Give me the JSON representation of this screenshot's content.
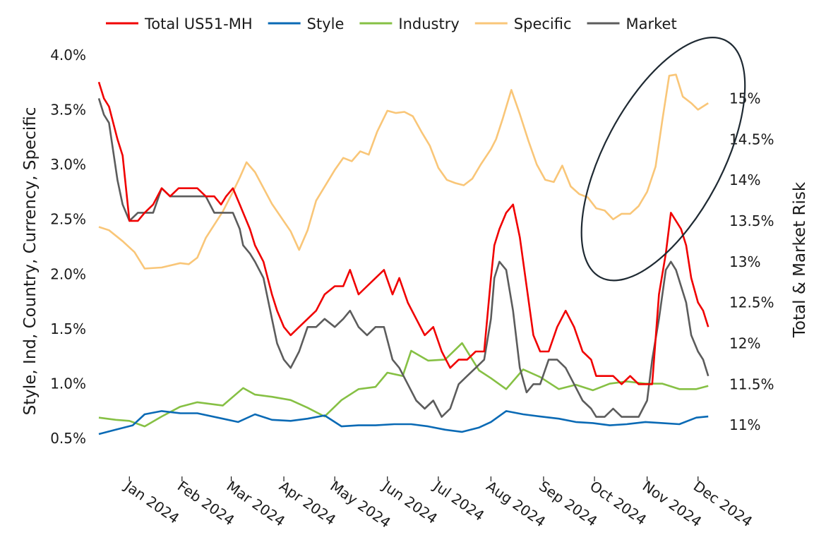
{
  "chart_data": {
    "type": "line",
    "legend": {
      "placement": "top",
      "entries": [
        {
          "label": "Total US51-MH",
          "color": "#f00000"
        },
        {
          "label": "Style",
          "color": "#0a6ab5"
        },
        {
          "label": "Industry",
          "color": "#86c044"
        },
        {
          "label": "Specific",
          "color": "#f9c678"
        },
        {
          "label": "Market",
          "color": "#5c5c5c"
        }
      ]
    },
    "ylabel": "Style, Ind, Country, Currency, Specific",
    "y2label": "Total & Market Risk",
    "ylim": [
      0.0025,
      0.0405
    ],
    "y2lim": [
      10.5,
      15.6
    ],
    "yticks": [
      "0.5%",
      "1.0%",
      "1.5%",
      "2.0%",
      "2.5%",
      "3.0%",
      "3.5%",
      "4.0%"
    ],
    "y2ticks": [
      "11%",
      "11.5%",
      "12%",
      "12.5%",
      "13%",
      "13.5%",
      "14%",
      "14.5%",
      "15%"
    ],
    "xlim": [
      "2023-12-14",
      "2024-12-14"
    ],
    "xticks": [
      {
        "date": "2024-01-01",
        "label": "Jan 2024"
      },
      {
        "date": "2024-02-01",
        "label": "Feb 2024"
      },
      {
        "date": "2024-03-01",
        "label": "Mar 2024"
      },
      {
        "date": "2024-04-01",
        "label": "Apr 2024"
      },
      {
        "date": "2024-05-01",
        "label": "May 2024"
      },
      {
        "date": "2024-06-01",
        "label": "Jun 2024"
      },
      {
        "date": "2024-07-01",
        "label": "Jul 2024"
      },
      {
        "date": "2024-08-01",
        "label": "Aug 2024"
      },
      {
        "date": "2024-09-01",
        "label": "Sep 2024"
      },
      {
        "date": "2024-10-01",
        "label": "Oct 2024"
      },
      {
        "date": "2024-11-01",
        "label": "Nov 2024"
      },
      {
        "date": "2024-12-01",
        "label": "Dec 2024"
      }
    ],
    "grid": false,
    "annotation": {
      "shape": "ellipse",
      "around_dates": [
        "2024-10-15",
        "2024-12-07"
      ],
      "value_range_left_axis": [
        0.0215,
        0.0395
      ]
    },
    "series": [
      {
        "name": "Total US51-MH",
        "axis": "right",
        "color": "#f00000",
        "x": [
          "2023-12-14",
          "2023-12-17",
          "2023-12-20",
          "2023-12-25",
          "2023-12-28",
          "2024-01-01",
          "2024-01-06",
          "2024-01-10",
          "2024-01-15",
          "2024-01-20",
          "2024-01-25",
          "2024-01-30",
          "2024-02-05",
          "2024-02-10",
          "2024-02-15",
          "2024-02-20",
          "2024-02-24",
          "2024-02-27",
          "2024-03-02",
          "2024-03-06",
          "2024-03-08",
          "2024-03-12",
          "2024-03-15",
          "2024-03-20",
          "2024-03-25",
          "2024-03-28",
          "2024-04-01",
          "2024-04-05",
          "2024-04-10",
          "2024-04-15",
          "2024-04-20",
          "2024-04-25",
          "2024-05-01",
          "2024-05-06",
          "2024-05-10",
          "2024-05-15",
          "2024-05-20",
          "2024-05-25",
          "2024-05-30",
          "2024-06-04",
          "2024-06-08",
          "2024-06-13",
          "2024-06-18",
          "2024-06-23",
          "2024-06-28",
          "2024-07-03",
          "2024-07-08",
          "2024-07-13",
          "2024-07-18",
          "2024-07-23",
          "2024-07-28",
          "2024-08-01",
          "2024-08-03",
          "2024-08-06",
          "2024-08-10",
          "2024-08-14",
          "2024-08-18",
          "2024-08-22",
          "2024-08-26",
          "2024-08-30",
          "2024-09-04",
          "2024-09-09",
          "2024-09-14",
          "2024-09-19",
          "2024-09-24",
          "2024-09-29",
          "2024-10-02",
          "2024-10-07",
          "2024-10-12",
          "2024-10-17",
          "2024-10-22",
          "2024-10-27",
          "2024-11-01",
          "2024-11-04",
          "2024-11-08",
          "2024-11-12",
          "2024-11-15",
          "2024-11-18",
          "2024-11-21",
          "2024-11-24",
          "2024-11-27",
          "2024-12-01",
          "2024-12-04",
          "2024-12-07"
        ],
        "values": [
          15.2,
          15.0,
          14.9,
          14.5,
          14.3,
          13.5,
          13.5,
          13.6,
          13.7,
          13.9,
          13.8,
          13.9,
          13.9,
          13.9,
          13.8,
          13.8,
          13.7,
          13.8,
          13.9,
          13.7,
          13.6,
          13.4,
          13.2,
          13.0,
          12.6,
          12.4,
          12.2,
          12.1,
          12.2,
          12.3,
          12.4,
          12.6,
          12.7,
          12.7,
          12.9,
          12.6,
          12.7,
          12.8,
          12.9,
          12.6,
          12.8,
          12.5,
          12.3,
          12.1,
          12.2,
          11.9,
          11.7,
          11.8,
          11.8,
          11.9,
          11.9,
          12.8,
          13.2,
          13.4,
          13.6,
          13.7,
          13.3,
          12.7,
          12.1,
          11.9,
          11.9,
          12.2,
          12.4,
          12.2,
          11.9,
          11.8,
          11.6,
          11.6,
          11.6,
          11.5,
          11.6,
          11.5,
          11.5,
          11.5,
          12.6,
          13.1,
          13.6,
          13.5,
          13.4,
          13.2,
          12.8,
          12.5,
          12.4,
          12.2
        ]
      },
      {
        "name": "Style",
        "axis": "left",
        "color": "#0a6ab5",
        "x": [
          "2023-12-14",
          "2023-12-24",
          "2024-01-03",
          "2024-01-10",
          "2024-01-20",
          "2024-01-31",
          "2024-02-10",
          "2024-02-25",
          "2024-03-05",
          "2024-03-15",
          "2024-03-25",
          "2024-04-05",
          "2024-04-15",
          "2024-04-25",
          "2024-05-05",
          "2024-05-15",
          "2024-05-25",
          "2024-06-05",
          "2024-06-15",
          "2024-06-25",
          "2024-07-05",
          "2024-07-15",
          "2024-07-25",
          "2024-08-01",
          "2024-08-10",
          "2024-08-20",
          "2024-08-30",
          "2024-09-10",
          "2024-09-20",
          "2024-09-30",
          "2024-10-10",
          "2024-10-20",
          "2024-10-31",
          "2024-11-10",
          "2024-11-20",
          "2024-11-30",
          "2024-12-07"
        ],
        "values": [
          0.0054,
          0.0058,
          0.0062,
          0.0072,
          0.0075,
          0.0073,
          0.0073,
          0.0068,
          0.0065,
          0.0072,
          0.0067,
          0.0066,
          0.0068,
          0.0071,
          0.0061,
          0.0062,
          0.0062,
          0.0063,
          0.0063,
          0.0061,
          0.0058,
          0.0056,
          0.006,
          0.0065,
          0.0075,
          0.0072,
          0.007,
          0.0068,
          0.0065,
          0.0064,
          0.0062,
          0.0063,
          0.0065,
          0.0064,
          0.0063,
          0.0069,
          0.007
        ]
      },
      {
        "name": "Industry",
        "axis": "left",
        "color": "#86c044",
        "x": [
          "2023-12-14",
          "2023-12-24",
          "2024-01-01",
          "2024-01-10",
          "2024-01-20",
          "2024-01-31",
          "2024-02-10",
          "2024-02-25",
          "2024-03-08",
          "2024-03-15",
          "2024-03-25",
          "2024-04-05",
          "2024-04-15",
          "2024-04-25",
          "2024-05-05",
          "2024-05-15",
          "2024-05-25",
          "2024-06-01",
          "2024-06-10",
          "2024-06-15",
          "2024-06-25",
          "2024-07-05",
          "2024-07-15",
          "2024-07-25",
          "2024-08-01",
          "2024-08-10",
          "2024-08-20",
          "2024-08-30",
          "2024-09-10",
          "2024-09-20",
          "2024-09-30",
          "2024-10-10",
          "2024-10-20",
          "2024-10-31",
          "2024-11-10",
          "2024-11-20",
          "2024-11-30",
          "2024-12-07"
        ],
        "values": [
          0.0069,
          0.0067,
          0.0066,
          0.0061,
          0.007,
          0.0079,
          0.0083,
          0.008,
          0.0096,
          0.009,
          0.0088,
          0.0085,
          0.0078,
          0.007,
          0.0085,
          0.0095,
          0.0097,
          0.011,
          0.0107,
          0.013,
          0.0121,
          0.0122,
          0.0137,
          0.0112,
          0.0105,
          0.0095,
          0.0113,
          0.0106,
          0.0095,
          0.0099,
          0.0094,
          0.01,
          0.0102,
          0.01,
          0.01,
          0.0095,
          0.0095,
          0.0098
        ]
      },
      {
        "name": "Specific",
        "axis": "left",
        "color": "#f9c678",
        "x": [
          "2023-12-14",
          "2023-12-20",
          "2023-12-28",
          "2024-01-04",
          "2024-01-10",
          "2024-01-20",
          "2024-01-31",
          "2024-02-05",
          "2024-02-10",
          "2024-02-15",
          "2024-02-25",
          "2024-03-02",
          "2024-03-06",
          "2024-03-10",
          "2024-03-15",
          "2024-03-25",
          "2024-04-05",
          "2024-04-10",
          "2024-04-15",
          "2024-04-20",
          "2024-05-01",
          "2024-05-06",
          "2024-05-11",
          "2024-05-16",
          "2024-05-21",
          "2024-05-26",
          "2024-06-01",
          "2024-06-06",
          "2024-06-11",
          "2024-06-16",
          "2024-06-21",
          "2024-06-26",
          "2024-07-01",
          "2024-07-06",
          "2024-07-11",
          "2024-07-16",
          "2024-07-21",
          "2024-07-26",
          "2024-08-01",
          "2024-08-04",
          "2024-08-08",
          "2024-08-13",
          "2024-08-18",
          "2024-08-23",
          "2024-08-28",
          "2024-09-02",
          "2024-09-07",
          "2024-09-12",
          "2024-09-17",
          "2024-09-22",
          "2024-09-27",
          "2024-10-02",
          "2024-10-07",
          "2024-10-12",
          "2024-10-17",
          "2024-10-22",
          "2024-10-27",
          "2024-11-01",
          "2024-11-06",
          "2024-11-10",
          "2024-11-14",
          "2024-11-18",
          "2024-11-22",
          "2024-11-27",
          "2024-12-01",
          "2024-12-07"
        ],
        "values": [
          0.0243,
          0.024,
          0.023,
          0.022,
          0.0205,
          0.0206,
          0.021,
          0.0209,
          0.0215,
          0.0233,
          0.0257,
          0.0275,
          0.0288,
          0.0302,
          0.0293,
          0.0264,
          0.0239,
          0.0222,
          0.024,
          0.0267,
          0.0295,
          0.0306,
          0.0303,
          0.0312,
          0.0309,
          0.033,
          0.0349,
          0.0347,
          0.0348,
          0.0344,
          0.033,
          0.0317,
          0.0297,
          0.0286,
          0.0283,
          0.0281,
          0.0287,
          0.03,
          0.0314,
          0.0323,
          0.0342,
          0.0368,
          0.0346,
          0.0322,
          0.03,
          0.0286,
          0.0284,
          0.0299,
          0.028,
          0.0273,
          0.027,
          0.026,
          0.0258,
          0.025,
          0.0255,
          0.0255,
          0.0262,
          0.0275,
          0.0298,
          0.0341,
          0.0381,
          0.0382,
          0.0362,
          0.0356,
          0.035,
          0.0356
        ]
      },
      {
        "name": "Market",
        "axis": "right",
        "color": "#5c5c5c",
        "x": [
          "2023-12-14",
          "2023-12-17",
          "2023-12-20",
          "2023-12-25",
          "2023-12-28",
          "2024-01-01",
          "2024-01-06",
          "2024-01-10",
          "2024-01-15",
          "2024-01-20",
          "2024-01-25",
          "2024-01-30",
          "2024-02-05",
          "2024-02-10",
          "2024-02-15",
          "2024-02-20",
          "2024-02-24",
          "2024-02-27",
          "2024-03-02",
          "2024-03-06",
          "2024-03-08",
          "2024-03-12",
          "2024-03-15",
          "2024-03-20",
          "2024-03-25",
          "2024-03-28",
          "2024-04-01",
          "2024-04-05",
          "2024-04-10",
          "2024-04-15",
          "2024-04-20",
          "2024-04-25",
          "2024-05-01",
          "2024-05-06",
          "2024-05-10",
          "2024-05-15",
          "2024-05-20",
          "2024-05-25",
          "2024-05-30",
          "2024-06-04",
          "2024-06-08",
          "2024-06-13",
          "2024-06-18",
          "2024-06-23",
          "2024-06-28",
          "2024-07-03",
          "2024-07-08",
          "2024-07-13",
          "2024-07-18",
          "2024-07-23",
          "2024-07-28",
          "2024-08-01",
          "2024-08-03",
          "2024-08-06",
          "2024-08-10",
          "2024-08-14",
          "2024-08-18",
          "2024-08-22",
          "2024-08-26",
          "2024-08-30",
          "2024-09-04",
          "2024-09-09",
          "2024-09-14",
          "2024-09-19",
          "2024-09-24",
          "2024-09-29",
          "2024-10-02",
          "2024-10-07",
          "2024-10-12",
          "2024-10-17",
          "2024-10-22",
          "2024-10-27",
          "2024-11-01",
          "2024-11-04",
          "2024-11-08",
          "2024-11-12",
          "2024-11-15",
          "2024-11-18",
          "2024-11-21",
          "2024-11-24",
          "2024-11-27",
          "2024-12-01",
          "2024-12-04",
          "2024-12-07"
        ],
        "values": [
          15.0,
          14.8,
          14.7,
          14.0,
          13.7,
          13.5,
          13.6,
          13.6,
          13.6,
          13.9,
          13.8,
          13.8,
          13.8,
          13.8,
          13.8,
          13.6,
          13.6,
          13.6,
          13.6,
          13.4,
          13.2,
          13.1,
          13.0,
          12.8,
          12.3,
          12.0,
          11.8,
          11.7,
          11.9,
          12.2,
          12.2,
          12.3,
          12.2,
          12.3,
          12.4,
          12.2,
          12.1,
          12.2,
          12.2,
          11.8,
          11.7,
          11.5,
          11.3,
          11.2,
          11.3,
          11.1,
          11.2,
          11.5,
          11.6,
          11.7,
          11.8,
          12.3,
          12.8,
          13.0,
          12.9,
          12.4,
          11.7,
          11.4,
          11.5,
          11.5,
          11.8,
          11.8,
          11.7,
          11.5,
          11.3,
          11.2,
          11.1,
          11.1,
          11.2,
          11.1,
          11.1,
          11.1,
          11.3,
          11.8,
          12.3,
          12.9,
          13.0,
          12.9,
          12.7,
          12.5,
          12.1,
          11.9,
          11.8,
          11.6
        ]
      }
    ]
  }
}
